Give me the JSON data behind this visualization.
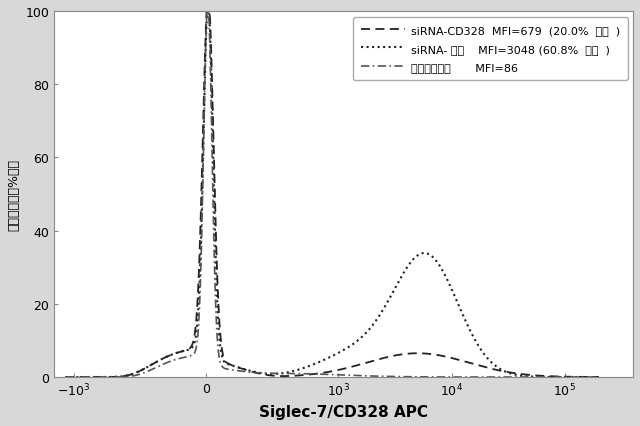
{
  "xlabel": "Siglec-7/CD328 APC",
  "ylabel": "最大に対する%割合",
  "ylim": [
    0,
    100
  ],
  "yticks": [
    0,
    20,
    40,
    60,
    80,
    100
  ],
  "xticks": [
    -1000,
    0,
    1000,
    10000,
    100000
  ],
  "xticklabels": [
    "$-10^3$",
    "$0$",
    "$10^3$",
    "$10^4$",
    "$10^5$"
  ],
  "linthresh": 100,
  "linscale": 0.15,
  "xlim": [
    -1500,
    400000
  ],
  "legend": [
    {
      "label": "siRNA-CD328  MFI=679  (20.0%  陽性  )",
      "linestyle": "--",
      "color": "#222222",
      "lw": 1.3
    },
    {
      "label": "siRNA- 対照    MFI=3048 (60.8%  陽性  )",
      "linestyle": ":",
      "color": "#222222",
      "lw": 1.5
    },
    {
      "label": "アイソタイプ       MFI=86",
      "linestyle": "-.",
      "color": "#555555",
      "lw": 1.2
    }
  ],
  "bg_color": "#d8d8d8",
  "plot_bg": "#ffffff"
}
